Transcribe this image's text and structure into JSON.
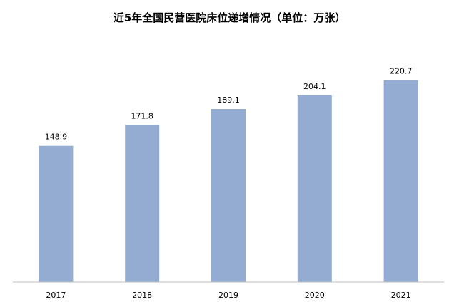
{
  "chart_data": {
    "type": "bar",
    "title": "近5年全国民营医院床位递增情况（单位：万张）",
    "categories": [
      "2017",
      "2018",
      "2019",
      "2020",
      "2021"
    ],
    "series": [
      {
        "values": [
          148.9,
          171.8,
          189.1,
          204.1,
          220.7
        ],
        "color": "#94acd1"
      }
    ],
    "data_labels": [
      "148.9",
      "171.8",
      "189.1",
      "204.1",
      "220.7"
    ],
    "ylim": [
      0,
      260
    ],
    "grid": false,
    "legend": "none",
    "axis_color": "#bfbfbf"
  }
}
